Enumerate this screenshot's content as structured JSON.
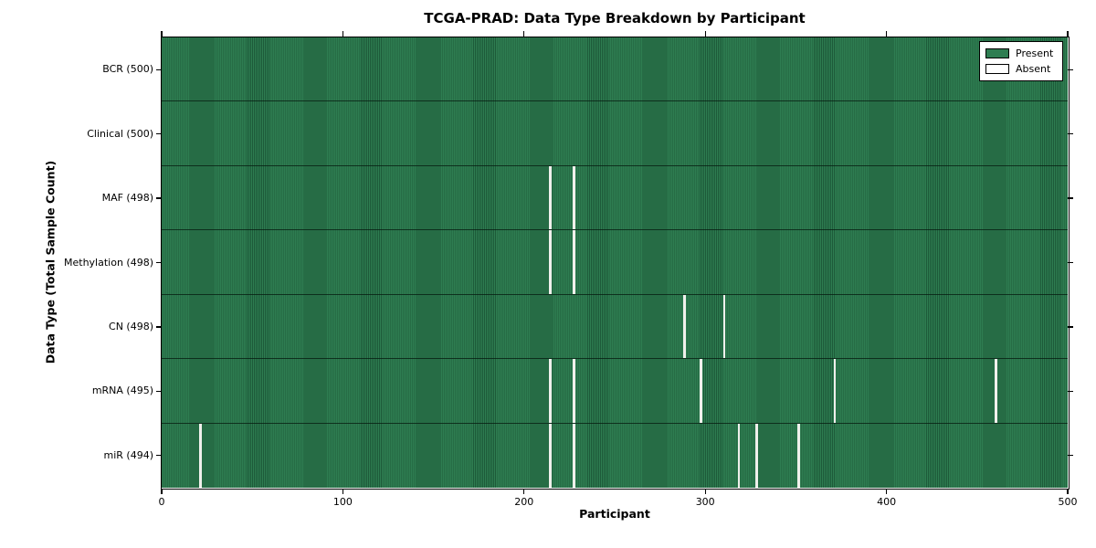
{
  "figure": {
    "title": "TCGA-PRAD: Data Type Breakdown by Participant",
    "xlabel": "Participant",
    "ylabel": "Data Type (Total Sample Count)"
  },
  "legend": {
    "items": [
      {
        "name": "present",
        "label": "Present",
        "color": "#2e7d51"
      },
      {
        "name": "absent",
        "label": "Absent",
        "color": "#ffffff"
      }
    ]
  },
  "chart_data": {
    "type": "heatmap",
    "title": "TCGA-PRAD: Data Type Breakdown by Participant",
    "xlabel": "Participant",
    "ylabel": "Data Type (Total Sample Count)",
    "xlim": [
      0,
      500
    ],
    "x_ticks": [
      0,
      100,
      200,
      300,
      400,
      500
    ],
    "n_participants": 500,
    "present_color": "#2e7d51",
    "cell_edge_color": "#1d5a39",
    "absent_color": "#f0f0ec",
    "grid": false,
    "legend_position": "upper right",
    "rows": [
      {
        "label": "BCR (500)",
        "data_type": "BCR",
        "total": 500,
        "absent_participants": []
      },
      {
        "label": "Clinical (500)",
        "data_type": "Clinical",
        "total": 500,
        "absent_participants": []
      },
      {
        "label": "MAF (498)",
        "data_type": "MAF",
        "total": 498,
        "absent_participants": [
          214,
          227
        ]
      },
      {
        "label": "Methylation (498)",
        "data_type": "Methylation",
        "total": 498,
        "absent_participants": [
          214,
          227
        ]
      },
      {
        "label": "CN (498)",
        "data_type": "CN",
        "total": 498,
        "absent_participants": [
          288,
          310
        ]
      },
      {
        "label": "mRNA (495)",
        "data_type": "mRNA",
        "total": 495,
        "absent_participants": [
          214,
          227,
          297,
          371,
          460
        ]
      },
      {
        "label": "miR (494)",
        "data_type": "miR",
        "total": 494,
        "absent_participants": [
          21,
          214,
          227,
          318,
          328,
          351
        ]
      }
    ]
  }
}
